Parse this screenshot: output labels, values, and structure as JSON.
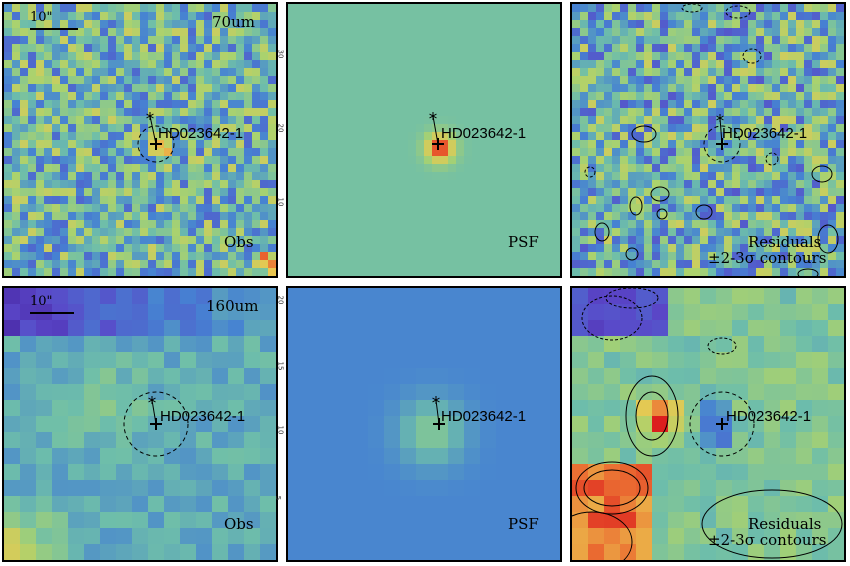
{
  "source_name": "HD023642-1",
  "scale_bar_label": "10\"",
  "rows": [
    {
      "band": "70um",
      "panels": [
        {
          "kind": "observed",
          "label": "Obs"
        },
        {
          "kind": "psf",
          "label": "PSF"
        },
        {
          "kind": "residual",
          "label_line1": "Residuals",
          "label_line2": "±2-3σ contours"
        }
      ],
      "axis_ticks": [
        "30",
        "20",
        "10"
      ]
    },
    {
      "band": "160um",
      "panels": [
        {
          "kind": "observed",
          "label": "Obs"
        },
        {
          "kind": "psf",
          "label": "PSF"
        },
        {
          "kind": "residual",
          "label_line1": "Residuals",
          "label_line2": "±2-3σ contours"
        }
      ],
      "axis_ticks": [
        "20",
        "15",
        "10",
        "5"
      ]
    }
  ],
  "colors": {
    "low": "#3b1f8c",
    "mid_blue": "#4a80c8",
    "mid_green": "#78c08a",
    "high": "#e02020"
  }
}
